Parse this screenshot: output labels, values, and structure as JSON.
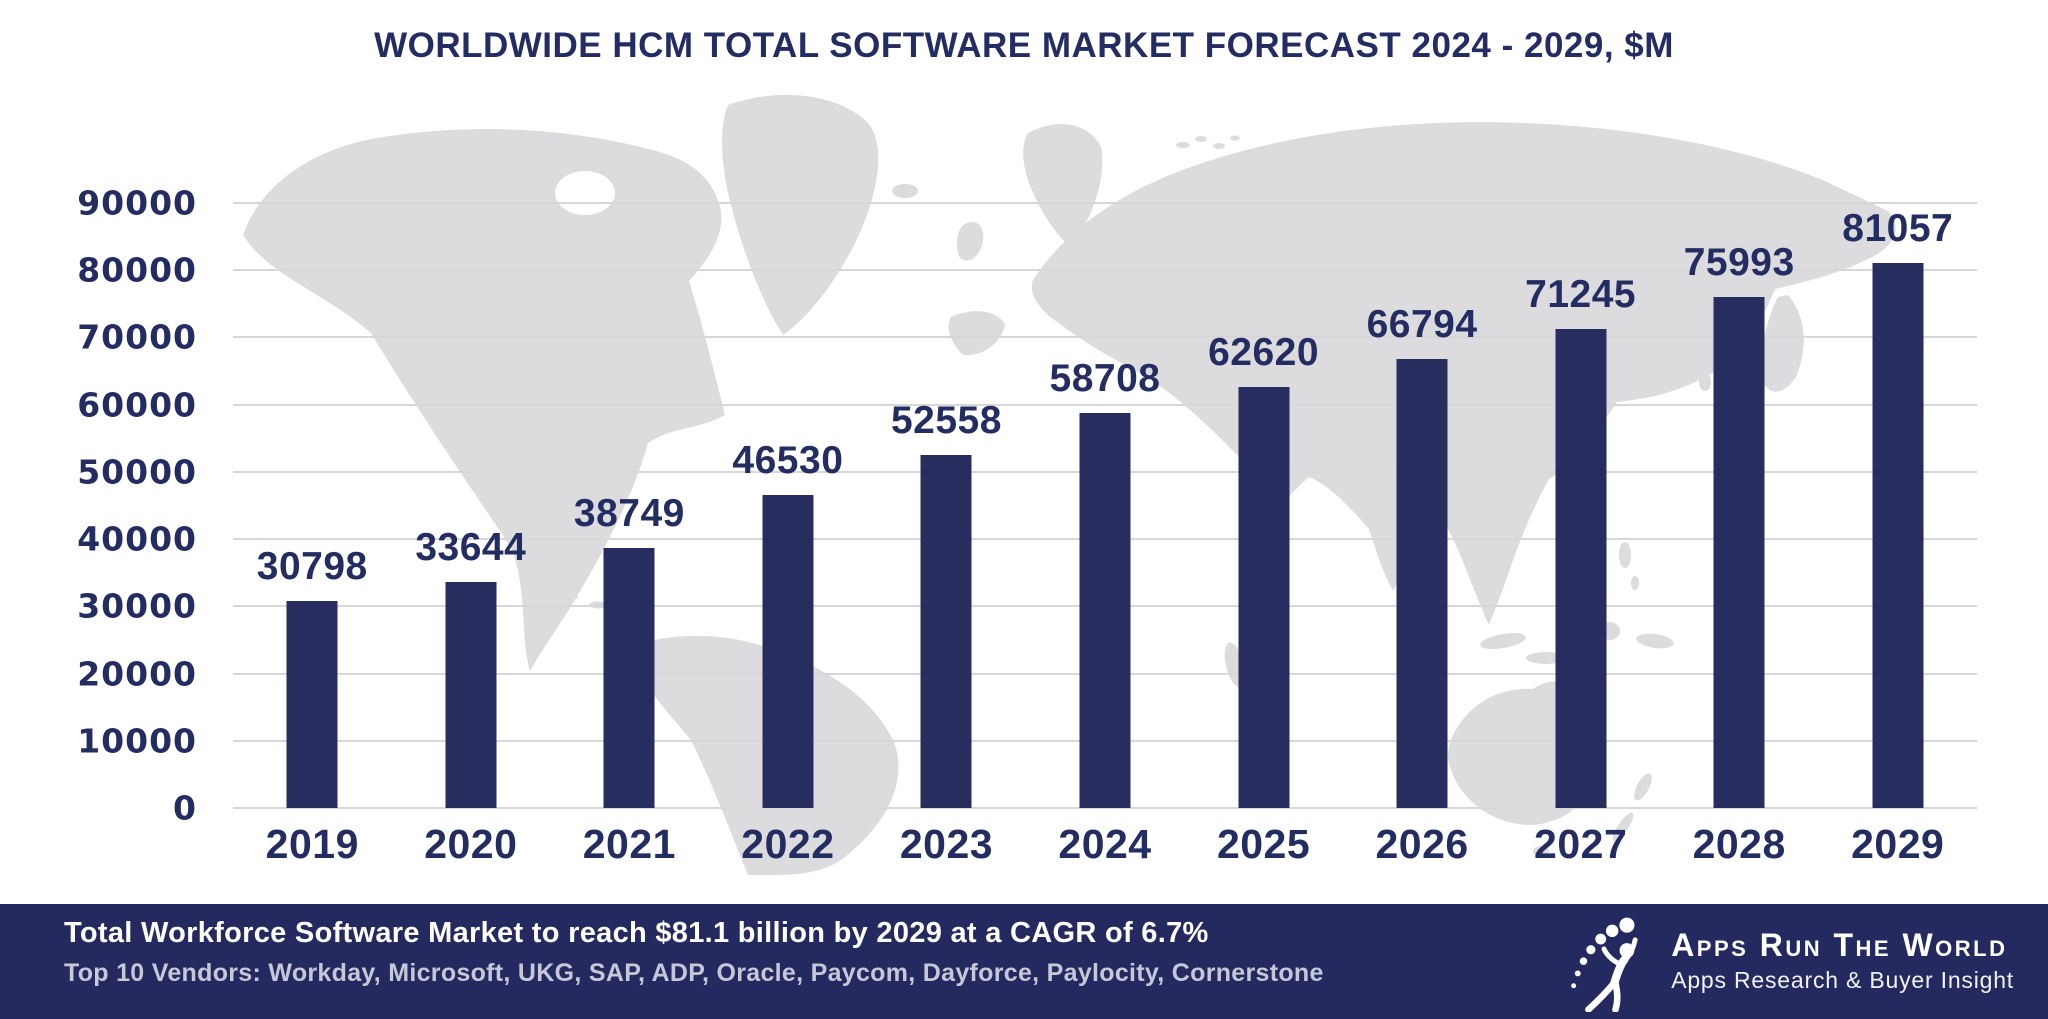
{
  "title": "WORLDWIDE HCM TOTAL SOFTWARE MARKET FORECAST 2024 - 2029, $M",
  "chart_data": {
    "type": "bar",
    "title": "WORLDWIDE HCM TOTAL SOFTWARE MARKET FORECAST 2024 - 2029, $M",
    "categories": [
      "2019",
      "2020",
      "2021",
      "2022",
      "2023",
      "2024",
      "2025",
      "2026",
      "2027",
      "2028",
      "2029"
    ],
    "values": [
      30798,
      33644,
      38749,
      46530,
      52558,
      58708,
      62620,
      66794,
      71245,
      75993,
      81057
    ],
    "xlabel": "",
    "ylabel": "",
    "ylim": [
      0,
      90000
    ],
    "yticks": [
      0,
      10000,
      20000,
      30000,
      40000,
      50000,
      60000,
      70000,
      80000,
      90000
    ],
    "grid": true,
    "legend": "none",
    "data_labels": "above-bars",
    "bar_color": "#272d5f",
    "background_watermark": "light-gray world map"
  },
  "footer": {
    "headline": "Total Workforce Software Market to reach $81.1 billion by 2029 at a CAGR of 6.7%",
    "vendors_line": "Top 10 Vendors: Workday, Microsoft, UKG, SAP, ADP, Oracle, Paycom, Dayforce, Paylocity, Cornerstone"
  },
  "logo": {
    "name": "Apps Run The World",
    "tagline": "Apps Research & Buyer Insight",
    "icon": "leaping-figure-with-dotted-arc"
  },
  "colors": {
    "navy_bar": "#272d5f",
    "navy_text": "#242d62",
    "footer_bg": "#242a5f",
    "footer_subtext": "#c6c8d8",
    "gridline": "#d7d7da",
    "map_gray": "#dcdcde",
    "background": "#ffffff"
  }
}
